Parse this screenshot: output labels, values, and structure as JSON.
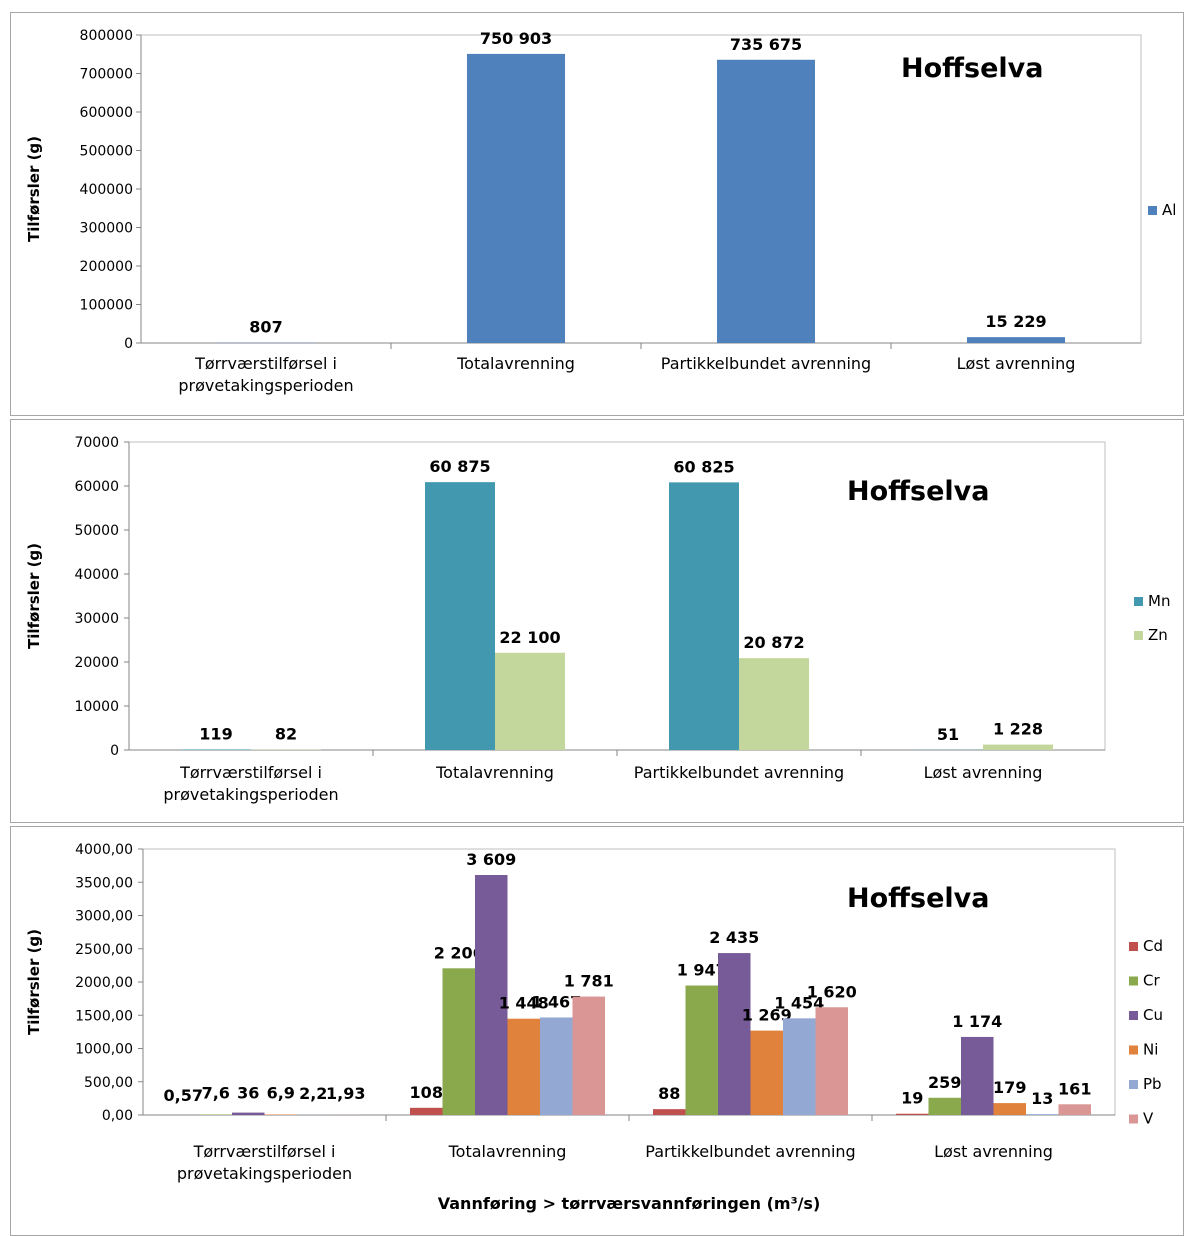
{
  "chart_data": [
    {
      "type": "bar",
      "title": "Hoffselva",
      "ylabel": "Tilførsler (g)",
      "xlabel": "",
      "ylim": [
        0,
        800000
      ],
      "yticks": [
        "0",
        "100000",
        "200000",
        "300000",
        "400000",
        "500000",
        "600000",
        "700000",
        "800000"
      ],
      "categories": [
        [
          "Tørrværstilførsel i",
          "prøvetakingsperioden"
        ],
        [
          "Totalavrenning"
        ],
        [
          "Partikkelbundet avrenning"
        ],
        [
          "Løst avrenning"
        ]
      ],
      "legend_position": "right",
      "series": [
        {
          "name": "Al",
          "color": "#4f81bd",
          "values": [
            807,
            750903,
            735675,
            15229
          ],
          "labels": [
            "807",
            "750 903",
            "735 675",
            "15 229"
          ]
        }
      ]
    },
    {
      "type": "bar",
      "title": "Hoffselva",
      "ylabel": "Tilførsler (g)",
      "xlabel": "",
      "ylim": [
        0,
        70000
      ],
      "yticks": [
        "0",
        "10000",
        "20000",
        "30000",
        "40000",
        "50000",
        "60000",
        "70000"
      ],
      "categories": [
        [
          "Tørrværstilførsel i",
          "prøvetakingsperioden"
        ],
        [
          "Totalavrenning"
        ],
        [
          "Partikkelbundet avrenning"
        ],
        [
          "Løst avrenning"
        ]
      ],
      "legend_position": "right",
      "series": [
        {
          "name": "Mn",
          "color": "#4198af",
          "values": [
            119,
            60875,
            60825,
            51
          ],
          "labels": [
            "119",
            "60 875",
            "60 825",
            "51"
          ]
        },
        {
          "name": "Zn",
          "color": "#c3d69b",
          "values": [
            82,
            22100,
            20872,
            1228
          ],
          "labels": [
            "82",
            "22 100",
            "20 872",
            "1 228"
          ]
        }
      ]
    },
    {
      "type": "bar",
      "title": "Hoffselva",
      "ylabel": "Tilførsler (g)",
      "xlabel": "Vannføring > tørrværsvannføringen (m³/s)",
      "ylim": [
        0,
        4000
      ],
      "yticks": [
        "0,00",
        "500,00",
        "1000,00",
        "1500,00",
        "2000,00",
        "2500,00",
        "3000,00",
        "3500,00",
        "4000,00"
      ],
      "categories": [
        [
          "Tørrværstilførsel i",
          "prøvetakingsperioden"
        ],
        [
          "Totalavrenning"
        ],
        [
          "Partikkelbundet avrenning"
        ],
        [
          "Løst avrenning"
        ]
      ],
      "legend_position": "right",
      "series": [
        {
          "name": "Cd",
          "color": "#c0504d",
          "values": [
            0.57,
            108,
            88,
            19
          ],
          "labels": [
            "0,57",
            "108",
            "88",
            "19"
          ]
        },
        {
          "name": "Cr",
          "color": "#8aa84c",
          "values": [
            7.6,
            2206,
            1947,
            259
          ],
          "labels": [
            "7,6",
            "2 206",
            "1 947",
            "259"
          ]
        },
        {
          "name": "Cu",
          "color": "#775a98",
          "values": [
            36,
            3609,
            2435,
            1174
          ],
          "labels": [
            "36",
            "3 609",
            "2 435",
            "1 174"
          ]
        },
        {
          "name": "Ni",
          "color": "#e0823c",
          "values": [
            6.9,
            1448,
            1269,
            179
          ],
          "labels": [
            "6,9",
            "1 448",
            "1 269",
            "179"
          ]
        },
        {
          "name": "Pb",
          "color": "#93a9d4",
          "values": [
            2.2,
            1467,
            1454,
            13
          ],
          "labels": [
            "2,2",
            "1 467",
            "1 454",
            "13"
          ]
        },
        {
          "name": "V",
          "color": "#d99694",
          "values": [
            1.93,
            1781,
            1620,
            161
          ],
          "labels": [
            "1,93",
            "1 781",
            "1 620",
            "161"
          ]
        }
      ]
    }
  ]
}
